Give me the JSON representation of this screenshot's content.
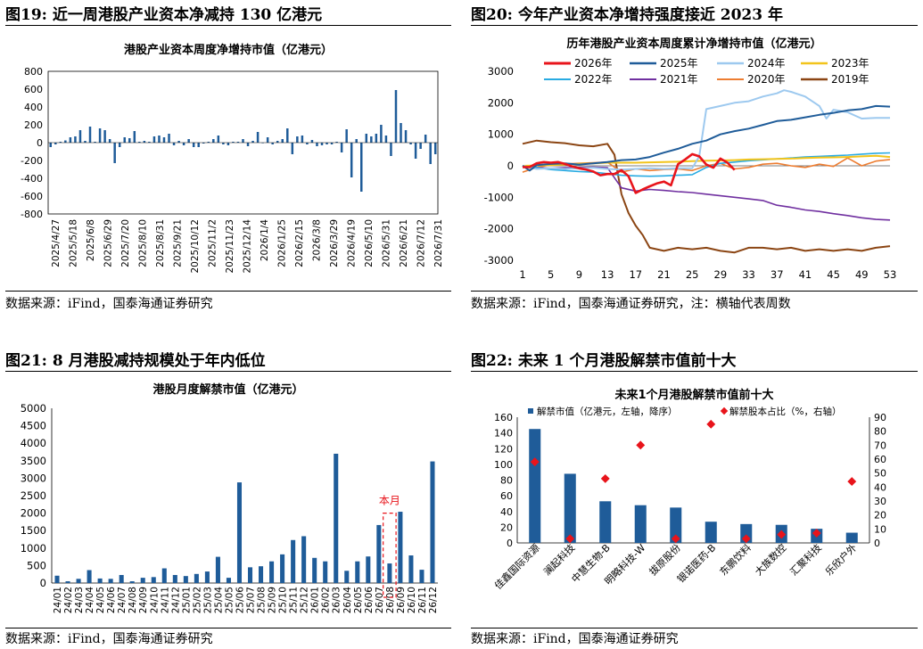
{
  "panels": [
    {
      "title": "图19:  近一周港股产业资本净减持 130 亿港元",
      "source": "数据来源：iFind，国泰海通证券研究"
    },
    {
      "title": "图20:  今年产业资本净增持强度接近 2023 年",
      "source": "数据来源：iFind，国泰海通证券研究，注：横轴代表周数"
    },
    {
      "title": "图21:  8 月港股减持规模处于年内低位",
      "source": "数据来源：iFind，国泰海通证券研究"
    },
    {
      "title": "图22:  未来 1 个月港股解禁市值前十大",
      "source": "数据来源：iFind，国泰海通证券研究"
    }
  ],
  "chart_data": [
    {
      "type": "bar",
      "title": "港股产业资本周度净增持市值（亿港元）",
      "ylim": [
        -800,
        800
      ],
      "yticks": [
        -800,
        -600,
        -400,
        -200,
        0,
        200,
        400,
        600,
        800
      ],
      "tick_labels": [
        "2025/4/27",
        "2025/5/18",
        "2025/6/8",
        "2025/6/29",
        "2025/7/20",
        "2025/8/10",
        "2025/8/31",
        "2025/9/21",
        "2025/10/12",
        "2025/11/2",
        "2025/11/23",
        "2025/12/14",
        "2026/1/4",
        "2026/1/25",
        "2026/2/15",
        "2026/3/8",
        "2026/3/29",
        "2026/4/19",
        "2026/5/10",
        "2026/5/31",
        "2026/6/21",
        "2026/7/12",
        "2026/7/31"
      ],
      "color": "#1F5C99",
      "values": [
        -50,
        -20,
        10,
        25,
        60,
        70,
        140,
        20,
        180,
        10,
        160,
        140,
        40,
        -230,
        -50,
        60,
        50,
        130,
        10,
        20,
        10,
        70,
        80,
        60,
        100,
        -30,
        20,
        -30,
        40,
        -50,
        -50,
        -10,
        10,
        40,
        80,
        -20,
        -30,
        10,
        10,
        40,
        -40,
        20,
        120,
        0,
        60,
        -20,
        20,
        40,
        160,
        -130,
        70,
        80,
        -20,
        30,
        -40,
        -30,
        -20,
        -20,
        10,
        -110,
        150,
        -390,
        40,
        -550,
        100,
        70,
        100,
        200,
        80,
        -150,
        590,
        220,
        140,
        -20,
        -180,
        -70,
        90,
        -240,
        -130
      ]
    },
    {
      "type": "line",
      "title": "历年港股产业资本周度累计净增持市值（亿港元）",
      "ylim": [
        -3000,
        3000
      ],
      "yticks": [
        -3000,
        -2000,
        -1000,
        0,
        1000,
        2000,
        3000
      ],
      "xticks": [
        1,
        5,
        9,
        13,
        17,
        21,
        25,
        29,
        33,
        37,
        41,
        45,
        49,
        53
      ],
      "xlim": [
        1,
        53
      ],
      "series": [
        {
          "name": "2026年",
          "color": "#E8141B",
          "width": 2.6,
          "x": [
            1,
            2,
            3,
            4,
            5,
            6,
            7,
            8,
            9,
            10,
            11,
            12,
            13,
            14,
            15,
            16,
            17,
            18,
            19,
            20,
            21,
            22,
            23,
            24,
            25,
            26,
            27,
            28,
            29,
            30,
            31
          ],
          "y": [
            -40,
            -40,
            80,
            120,
            100,
            120,
            60,
            -20,
            -80,
            -120,
            -180,
            -300,
            -260,
            -260,
            -140,
            -330,
            -860,
            -750,
            -650,
            -560,
            -500,
            -620,
            50,
            200,
            370,
            300,
            40,
            -60,
            230,
            100,
            -130
          ]
        },
        {
          "name": "2025年",
          "color": "#1F5C99",
          "width": 2.0,
          "x": [
            1,
            2,
            3,
            5,
            7,
            9,
            11,
            13,
            15,
            17,
            19,
            21,
            23,
            25,
            27,
            29,
            31,
            33,
            35,
            37,
            39,
            41,
            43,
            45,
            47,
            49,
            51,
            53
          ],
          "y": [
            0,
            -150,
            20,
            60,
            80,
            40,
            80,
            120,
            180,
            200,
            280,
            420,
            540,
            700,
            800,
            1000,
            1100,
            1180,
            1300,
            1420,
            1460,
            1540,
            1620,
            1680,
            1760,
            1800,
            1900,
            1880
          ]
        },
        {
          "name": "2024年",
          "color": "#9DC9EF",
          "width": 2.0,
          "x": [
            1,
            3,
            5,
            7,
            9,
            11,
            13,
            15,
            17,
            19,
            21,
            23,
            25,
            26,
            27,
            29,
            31,
            33,
            35,
            37,
            38,
            39,
            41,
            43,
            44,
            45,
            47,
            48,
            49,
            51,
            53
          ],
          "y": [
            0,
            -100,
            -80,
            -100,
            -80,
            -60,
            -100,
            -120,
            -100,
            -80,
            -100,
            -80,
            -80,
            300,
            1800,
            1900,
            2000,
            2050,
            2200,
            2300,
            2400,
            2350,
            2200,
            1900,
            1500,
            1780,
            1700,
            1600,
            1500,
            1520,
            1520
          ]
        },
        {
          "name": "2023年",
          "color": "#F2C41B",
          "width": 2.0,
          "x": [
            1,
            3,
            5,
            7,
            9,
            11,
            13,
            15,
            17,
            19,
            21,
            23,
            25,
            27,
            29,
            31,
            33,
            35,
            37,
            39,
            41,
            43,
            45,
            47,
            49,
            51,
            53
          ],
          "y": [
            0,
            10,
            20,
            40,
            60,
            80,
            100,
            100,
            100,
            110,
            120,
            130,
            150,
            160,
            170,
            180,
            200,
            210,
            220,
            230,
            250,
            260,
            270,
            280,
            300,
            320,
            280
          ]
        },
        {
          "name": "2022年",
          "color": "#29ABE2",
          "width": 1.6,
          "x": [
            1,
            3,
            5,
            7,
            9,
            11,
            13,
            15,
            17,
            19,
            21,
            23,
            25,
            27,
            29,
            31,
            33,
            35,
            37,
            39,
            41,
            43,
            45,
            47,
            49,
            51,
            53
          ],
          "y": [
            0,
            -60,
            -120,
            -150,
            -180,
            -200,
            -250,
            -300,
            -320,
            -330,
            -320,
            -300,
            -280,
            -50,
            80,
            120,
            160,
            190,
            220,
            250,
            280,
            300,
            320,
            340,
            370,
            400,
            410
          ]
        },
        {
          "name": "2021年",
          "color": "#7030A0",
          "width": 1.6,
          "x": [
            1,
            3,
            5,
            7,
            9,
            11,
            13,
            15,
            17,
            19,
            21,
            23,
            25,
            27,
            29,
            31,
            33,
            35,
            37,
            39,
            41,
            43,
            45,
            47,
            49,
            51,
            53
          ],
          "y": [
            0,
            -50,
            -80,
            -60,
            -50,
            -40,
            -60,
            -700,
            -800,
            -750,
            -780,
            -820,
            -850,
            -900,
            -950,
            -1000,
            -1050,
            -1100,
            -1250,
            -1320,
            -1400,
            -1450,
            -1520,
            -1580,
            -1650,
            -1700,
            -1720
          ]
        },
        {
          "name": "2020年",
          "color": "#ED7D31",
          "width": 1.6,
          "x": [
            1,
            3,
            5,
            7,
            9,
            11,
            13,
            15,
            17,
            19,
            21,
            23,
            25,
            27,
            29,
            31,
            33,
            35,
            37,
            39,
            41,
            43,
            45,
            47,
            49,
            51,
            53
          ],
          "y": [
            -200,
            -50,
            30,
            60,
            80,
            100,
            120,
            -200,
            -100,
            -150,
            -120,
            -100,
            -150,
            0,
            80,
            -100,
            -50,
            50,
            80,
            0,
            -50,
            50,
            -20,
            250,
            0,
            150,
            200
          ]
        },
        {
          "name": "2019年",
          "color": "#8B4513",
          "width": 2.0,
          "x": [
            1,
            3,
            5,
            7,
            9,
            11,
            13,
            14,
            15,
            16,
            17,
            18,
            19,
            21,
            23,
            25,
            27,
            29,
            31,
            33,
            35,
            37,
            39,
            41,
            43,
            45,
            47,
            49,
            51,
            53
          ],
          "y": [
            700,
            800,
            750,
            720,
            650,
            620,
            700,
            350,
            -900,
            -1500,
            -1900,
            -2200,
            -2600,
            -2700,
            -2600,
            -2650,
            -2600,
            -2700,
            -2750,
            -2600,
            -2600,
            -2650,
            -2600,
            -2700,
            -2650,
            -2700,
            -2650,
            -2700,
            -2600,
            -2550
          ]
        }
      ]
    },
    {
      "type": "bar",
      "title": "港股月度解禁市值（亿港元）",
      "ylim": [
        0,
        5000
      ],
      "yticks": [
        0,
        500,
        1000,
        1500,
        2000,
        2500,
        3000,
        3500,
        4000,
        4500,
        5000
      ],
      "categories": [
        "24/01",
        "24/02",
        "24/03",
        "24/04",
        "24/05",
        "24/06",
        "24/07",
        "24/08",
        "24/09",
        "24/10",
        "24/11",
        "24/12",
        "25/01",
        "25/02",
        "25/03",
        "25/04",
        "25/05",
        "25/06",
        "25/07",
        "25/08",
        "25/09",
        "25/10",
        "25/11",
        "25/12",
        "26/01",
        "26/02",
        "26/03",
        "26/04",
        "26/05",
        "26/06",
        "26/07",
        "26/08",
        "26/09",
        "26/10",
        "26/11",
        "26/12"
      ],
      "values": [
        210,
        50,
        120,
        370,
        130,
        120,
        230,
        50,
        150,
        170,
        420,
        230,
        200,
        260,
        330,
        750,
        150,
        2880,
        450,
        480,
        620,
        820,
        1230,
        1340,
        720,
        620,
        3700,
        350,
        620,
        760,
        1660,
        560,
        2040,
        790,
        380,
        3480
      ],
      "color": "#1F5C99",
      "annotation": "本月",
      "highlight_index": 31
    },
    {
      "type": "bar",
      "title": "未来1个月港股解禁市值前十大",
      "categories": [
        "佳鑫国际资源",
        "澜起科技",
        "中慧生物-B",
        "明略科技-W",
        "拔原股份",
        "银诺医药-B",
        "东鹏饮料",
        "大族数控",
        "汇聚科技",
        "乐欣户外"
      ],
      "series": [
        {
          "name": "解禁市值（亿港元，左轴，降序）",
          "axis": "left",
          "color": "#1F5C99",
          "values": [
            145,
            88,
            53,
            48,
            45,
            27,
            24,
            23,
            18,
            13
          ]
        },
        {
          "name": "解禁股本占比（%，右轴）",
          "axis": "right",
          "color": "#E8141B",
          "values": [
            58,
            3,
            46,
            70,
            3,
            85,
            3,
            6,
            7,
            44
          ]
        }
      ],
      "ylim_left": [
        0,
        160
      ],
      "yticks_left": [
        0,
        20,
        40,
        60,
        80,
        100,
        120,
        140,
        160
      ],
      "ylim_right": [
        0,
        90
      ],
      "yticks_right": [
        0,
        10,
        20,
        30,
        40,
        50,
        60,
        70,
        80,
        90
      ]
    }
  ]
}
